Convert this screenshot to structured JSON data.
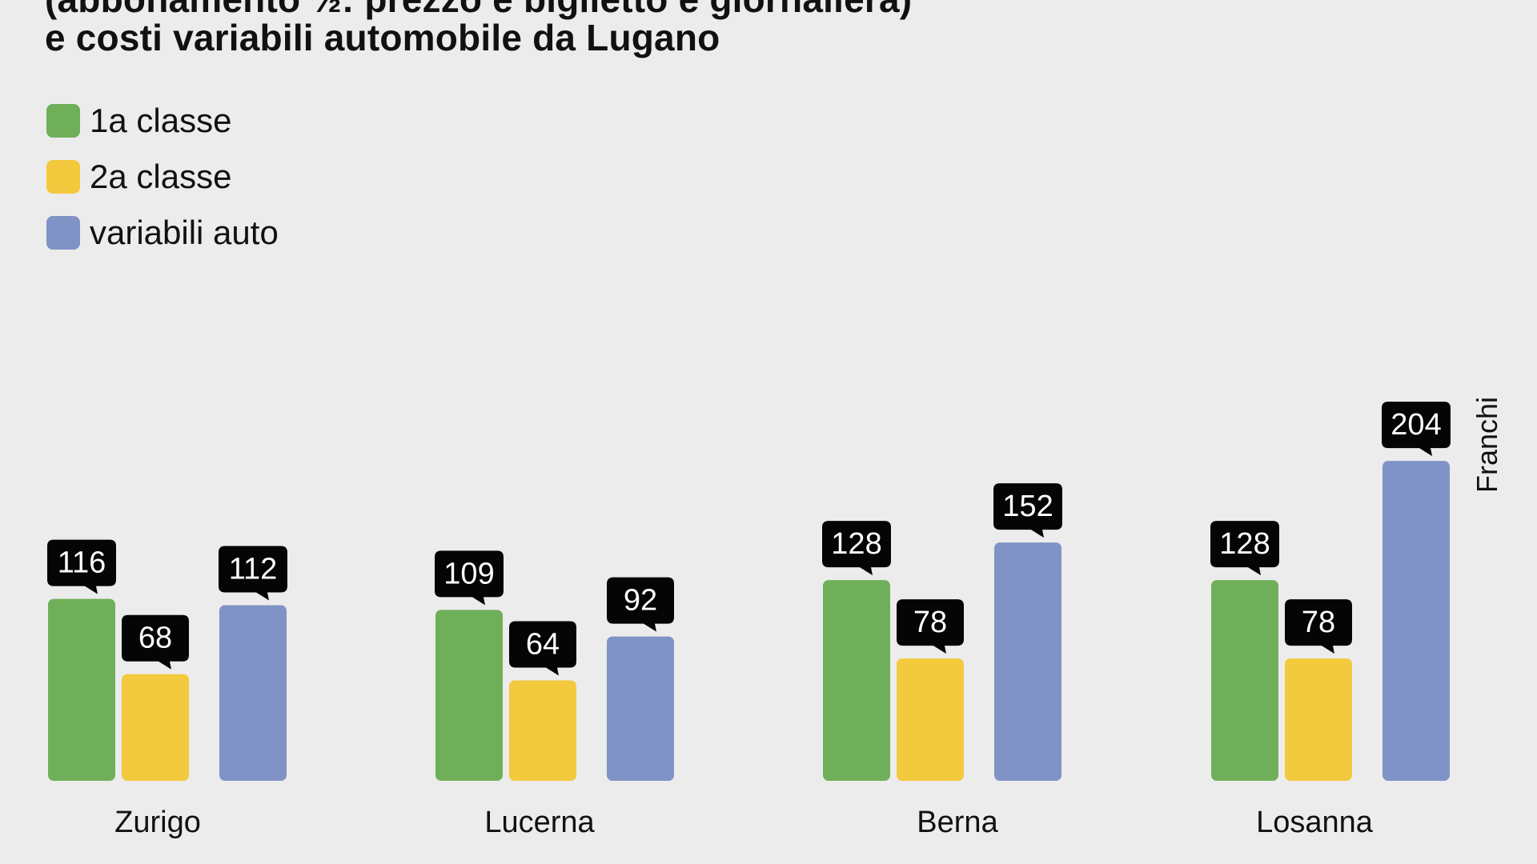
{
  "chart_data": {
    "type": "bar",
    "title_lines": [
      "(abbonamento ½: prezzo e biglietto e giornaliera)",
      "e costi variabili automobile da Lugano"
    ],
    "categories": [
      "Zurigo",
      "Lucerna",
      "Berna",
      "Losanna"
    ],
    "series": [
      {
        "name": "1a classe",
        "values": [
          116,
          109,
          128,
          128
        ],
        "color": "#6faf5a"
      },
      {
        "name": "2a classe",
        "values": [
          68,
          64,
          78,
          78
        ],
        "color": "#f3c93d"
      },
      {
        "name": "variabili auto",
        "values": [
          112,
          92,
          152,
          204
        ],
        "color": "#8093c6"
      }
    ],
    "ylabel": "Franchi",
    "xlabel": "",
    "ylim": [
      0,
      230
    ],
    "legend": "top-left",
    "data_labels": true,
    "grid": false
  }
}
